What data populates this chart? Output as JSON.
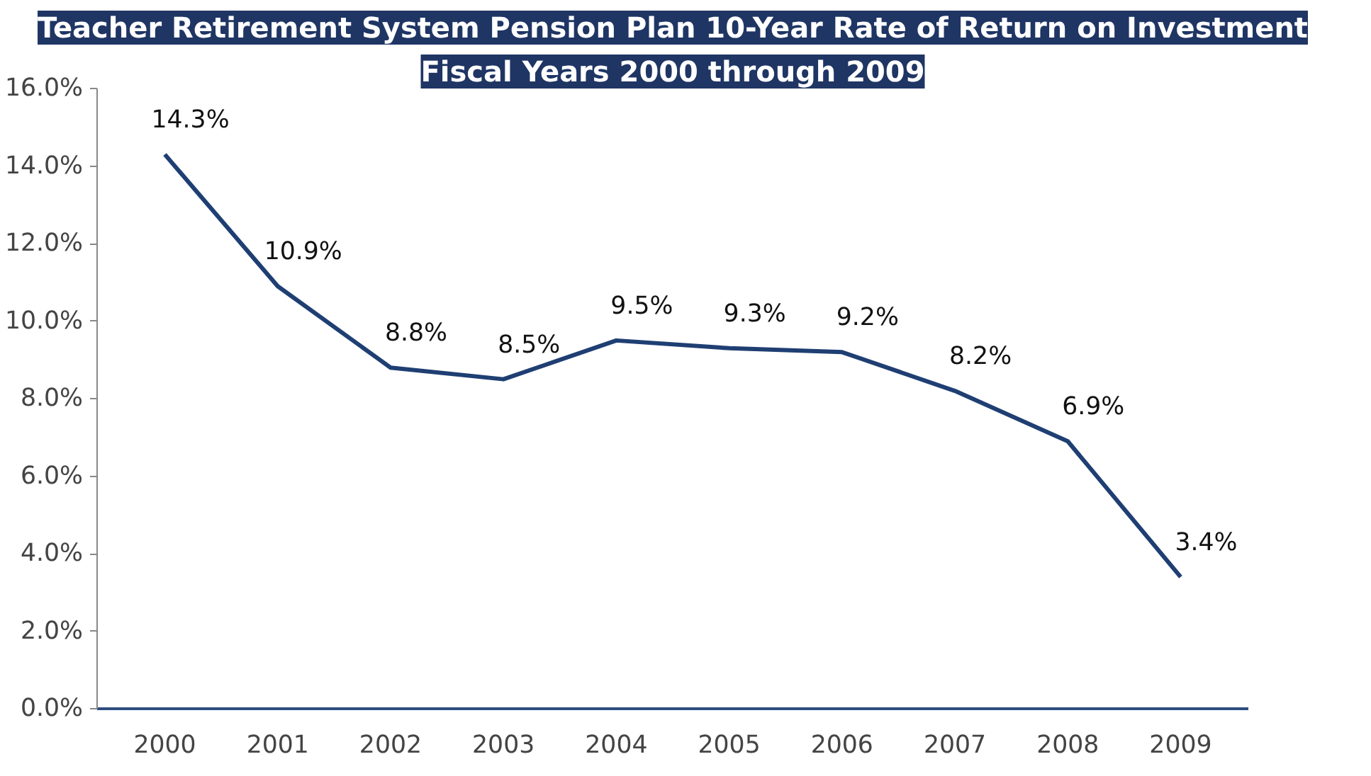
{
  "chart_data": {
    "type": "line",
    "title": "Teacher Retirement System Pension Plan 10-Year Rate of Return on Investment",
    "subtitle": "Fiscal Years 2000 through 2009",
    "categories": [
      "2000",
      "2001",
      "2002",
      "2003",
      "2004",
      "2005",
      "2006",
      "2007",
      "2008",
      "2009"
    ],
    "series": [
      {
        "color": "#1f3f73",
        "values": [
          14.3,
          10.9,
          8.8,
          8.5,
          9.5,
          9.3,
          9.2,
          8.2,
          6.9,
          3.4
        ],
        "value_labels": [
          "14.3%",
          "10.9%",
          "8.8%",
          "8.5%",
          "9.5%",
          "9.3%",
          "9.2%",
          "8.2%",
          "6.9%",
          "3.4%"
        ]
      }
    ],
    "ylim": [
      0,
      16
    ],
    "yticks": [
      {
        "value": 0,
        "label": "0.0%"
      },
      {
        "value": 2,
        "label": "2.0%"
      },
      {
        "value": 4,
        "label": "4.0%"
      },
      {
        "value": 6,
        "label": "6.0%"
      },
      {
        "value": 8,
        "label": "8.0%"
      },
      {
        "value": 10,
        "label": "10.0%"
      },
      {
        "value": 12,
        "label": "12.0%"
      },
      {
        "value": 14,
        "label": "14.0%"
      },
      {
        "value": 16,
        "label": "16.0%"
      }
    ],
    "grid": false,
    "marker": "none",
    "line_style": "solid"
  }
}
